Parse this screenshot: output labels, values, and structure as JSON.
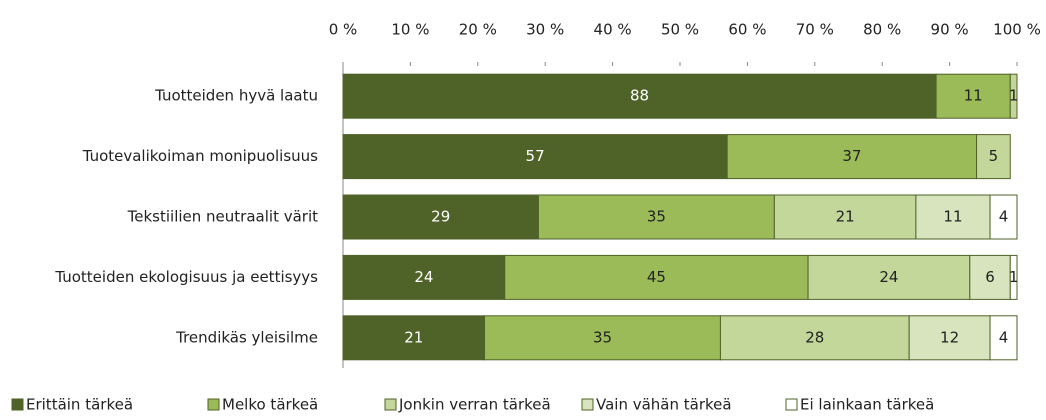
{
  "chart_data": {
    "type": "stacked-bar-horizontal",
    "categories": [
      "Tuotteiden hyvä laatu",
      "Tuotevalikoiman monipuolisuus",
      "Tekstiilien neutraalit värit",
      "Tuotteiden ekologisuus ja eettisyys",
      "Trendikäs yleisilme"
    ],
    "series": [
      {
        "name": "Erittäin tärkeä",
        "color": "#4f6228",
        "values": [
          88,
          57,
          29,
          24,
          21
        ]
      },
      {
        "name": "Melko tärkeä",
        "color": "#9bbb59",
        "values": [
          11,
          37,
          35,
          45,
          35
        ]
      },
      {
        "name": "Jonkin verran tärkeä",
        "color": "#c4d79b",
        "values": [
          1,
          5,
          21,
          24,
          28
        ]
      },
      {
        "name": "Vain vähän tärkeä",
        "color": "#d7e4bd",
        "values": [
          null,
          null,
          11,
          6,
          12
        ]
      },
      {
        "name": "Ei lainkaan tärkeä",
        "color": "#ffffff",
        "values": [
          null,
          null,
          4,
          1,
          4
        ]
      }
    ],
    "xlim": [
      0,
      100
    ],
    "xticks": [
      {
        "value": 0,
        "label": "0 %"
      },
      {
        "value": 10,
        "label": "10 %"
      },
      {
        "value": 20,
        "label": "20 %"
      },
      {
        "value": 30,
        "label": "30 %"
      },
      {
        "value": 40,
        "label": "40 %"
      },
      {
        "value": 50,
        "label": "50 %"
      },
      {
        "value": 60,
        "label": "60 %"
      },
      {
        "value": 70,
        "label": "70 %"
      },
      {
        "value": 80,
        "label": "80 %"
      },
      {
        "value": 90,
        "label": "90 %"
      },
      {
        "value": 100,
        "label": "100 %"
      }
    ],
    "legend": "bottom"
  }
}
